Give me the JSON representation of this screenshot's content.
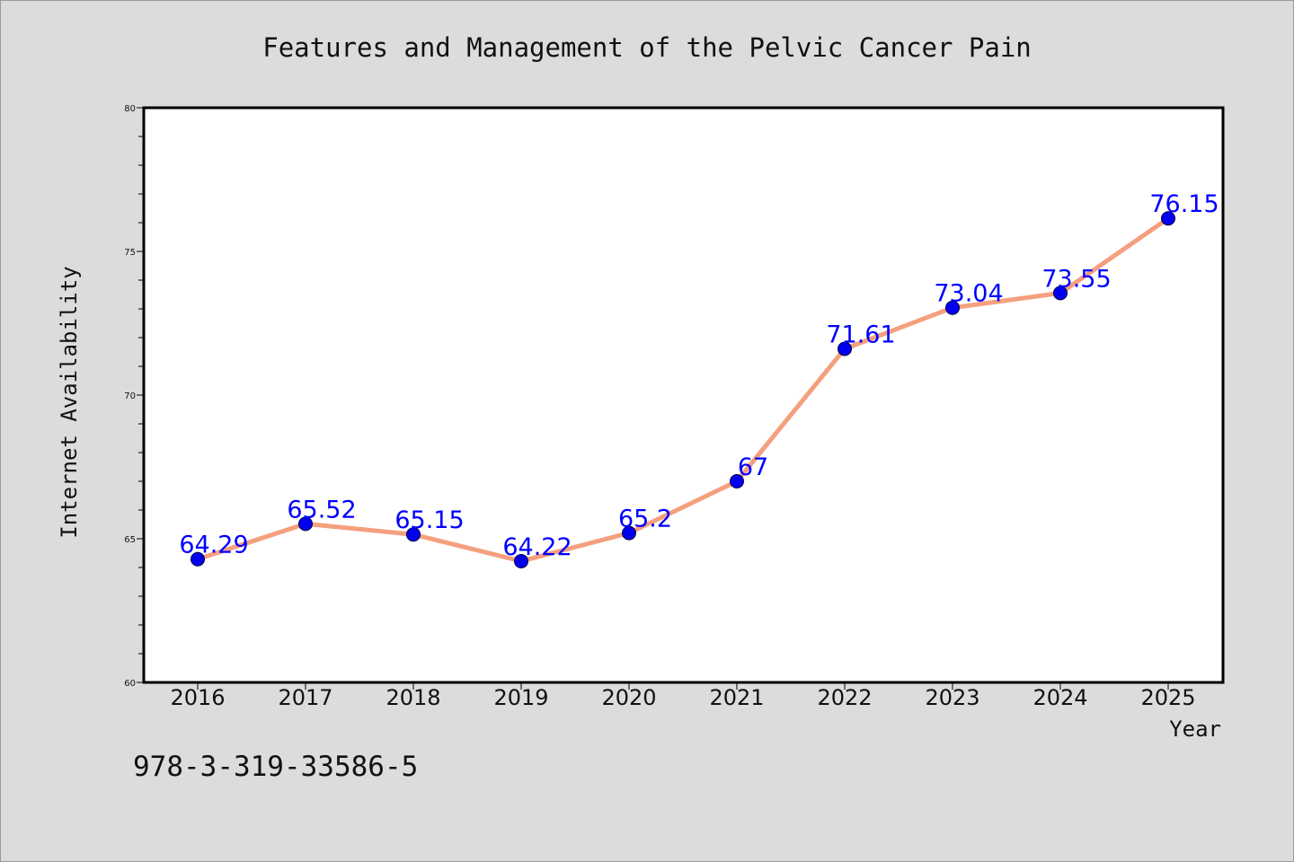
{
  "chart_data": {
    "type": "line",
    "title": "Features and Management of the Pelvic Cancer Pain",
    "xlabel": "Year",
    "ylabel": "Internet Availability",
    "x": [
      "2016",
      "2017",
      "2018",
      "2019",
      "2020",
      "2021",
      "2022",
      "2023",
      "2024",
      "2025"
    ],
    "series": [
      {
        "values": [
          64.29,
          65.52,
          65.15,
          64.22,
          65.2,
          67,
          71.61,
          73.04,
          73.55,
          76.15
        ],
        "data_labels": [
          "64.29",
          "65.52",
          "65.15",
          "64.22",
          "65.2",
          "67",
          "71.61",
          "73.04",
          "73.55",
          "76.15"
        ],
        "line_color": "#f4a07e",
        "marker_color": "#0000ee",
        "label_color": "#0000ff"
      }
    ],
    "ylim": [
      60,
      80
    ],
    "yticks": [
      "60",
      "65",
      "70",
      "75",
      "80"
    ],
    "grid": false,
    "legend": "none"
  },
  "annotation": "978-3-319-33586-5",
  "colors": {
    "background": "#dcdcdc",
    "plot_background": "#ffffff",
    "axis": "#000000"
  }
}
